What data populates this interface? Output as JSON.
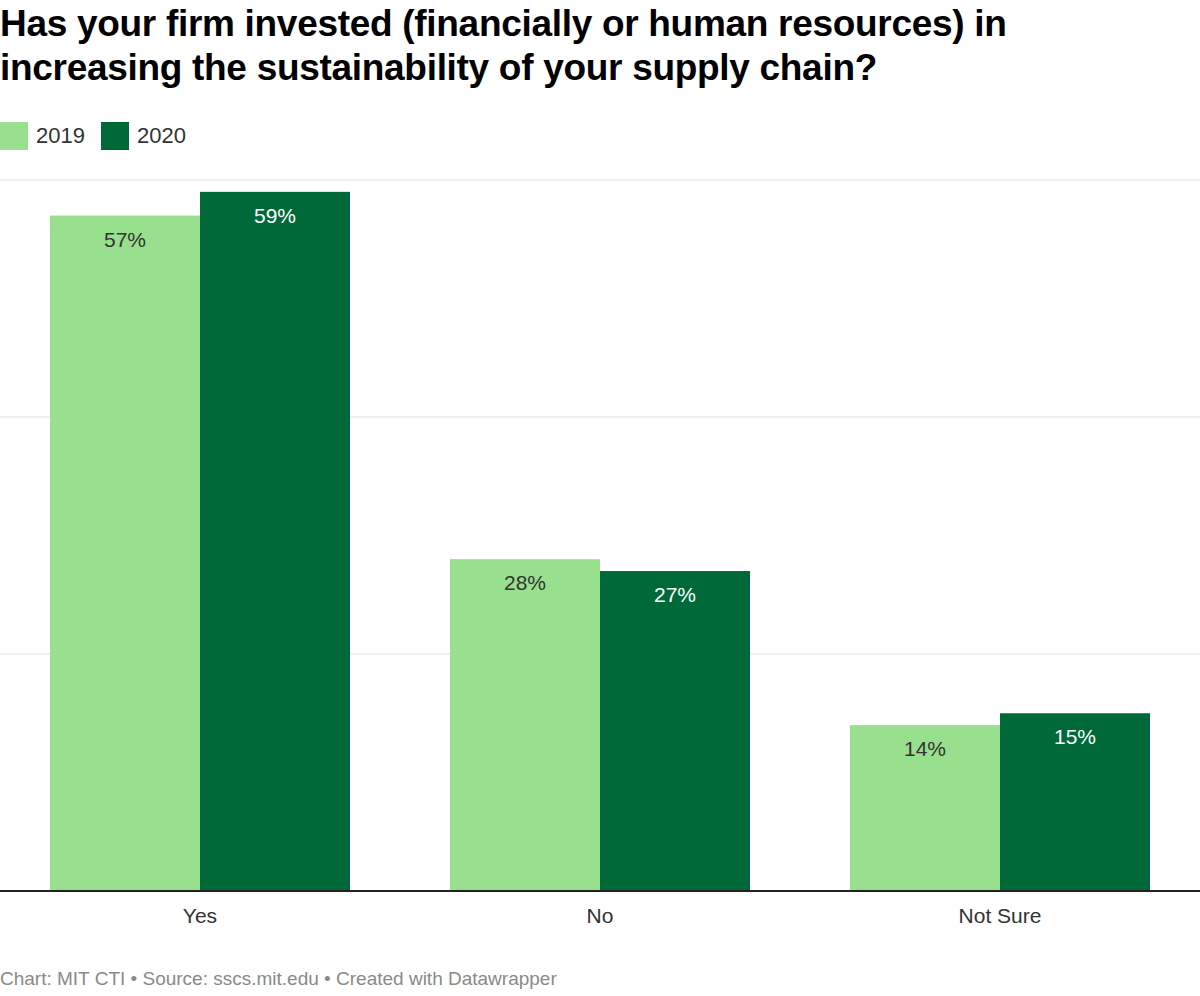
{
  "chart_data": {
    "type": "bar",
    "title": "Has your firm invested (financially or human resources) in increasing the sustainability of your supply chain?",
    "source": "Chart: MIT CTI • Source: sscs.mit.edu • Created with Datawrapper",
    "categories": [
      "Yes",
      "No",
      "Not Sure"
    ],
    "series": [
      {
        "name": "2019",
        "color": "#98df8e",
        "values": [
          57,
          28,
          14
        ],
        "value_labels": [
          "57%",
          "28%",
          "14%"
        ]
      },
      {
        "name": "2020",
        "color": "#00693a",
        "values": [
          59,
          27,
          15
        ],
        "value_labels": [
          "59%",
          "27%",
          "15%"
        ]
      }
    ],
    "ylim": [
      0,
      60
    ],
    "yticks": [
      0,
      20,
      40,
      60
    ],
    "grid": true,
    "legend": "top-left",
    "data_labels": true,
    "tick_labels": "x"
  }
}
